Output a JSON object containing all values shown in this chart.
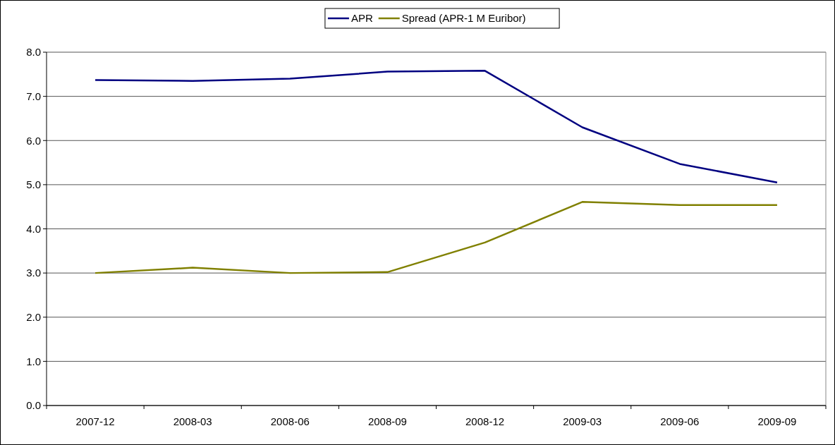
{
  "chart_data": {
    "type": "line",
    "categories": [
      "2007-12",
      "2008-03",
      "2008-06",
      "2008-09",
      "2008-12",
      "2009-03",
      "2009-06",
      "2009-09"
    ],
    "series": [
      {
        "name": "APR",
        "color": "#000080",
        "values": [
          7.37,
          7.35,
          7.4,
          7.56,
          7.58,
          6.3,
          5.47,
          5.05
        ]
      },
      {
        "name": "Spread (APR-1 M Euribor)",
        "color": "#808000",
        "values": [
          3.0,
          3.12,
          3.0,
          3.02,
          3.69,
          4.61,
          4.54,
          4.54
        ]
      }
    ],
    "ylim": [
      0,
      8
    ],
    "yticks": [
      {
        "value": 0,
        "label": "0.0"
      },
      {
        "value": 1,
        "label": "1.0"
      },
      {
        "value": 2,
        "label": "2.0"
      },
      {
        "value": 3,
        "label": "3.0"
      },
      {
        "value": 4,
        "label": "4.0"
      },
      {
        "value": 5,
        "label": "5.0"
      },
      {
        "value": 6,
        "label": "6.0"
      },
      {
        "value": 7,
        "label": "7.0"
      },
      {
        "value": 8,
        "label": "8.0"
      }
    ],
    "grid": "y",
    "legend": "top",
    "marker": "none",
    "line_style": "solid"
  }
}
